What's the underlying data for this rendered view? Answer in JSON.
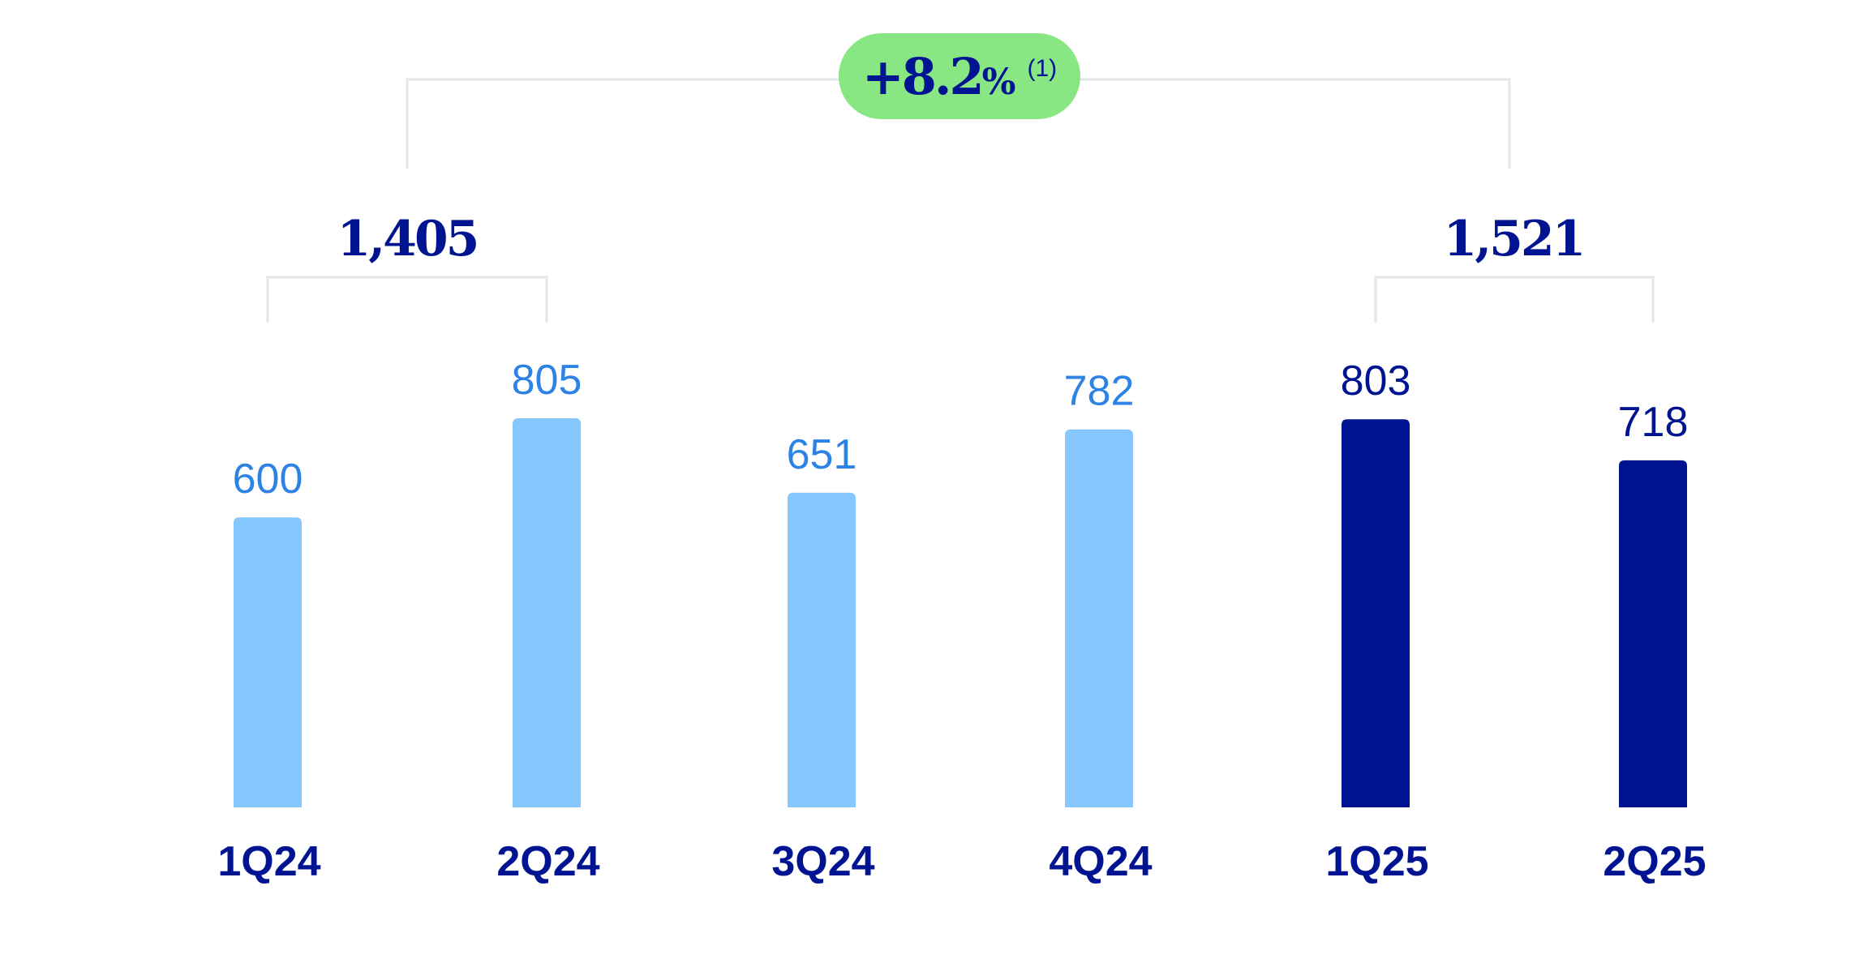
{
  "chart_data": {
    "type": "bar",
    "title": "",
    "xlabel": "",
    "ylabel": "",
    "ylim": [
      0,
      1000
    ],
    "grid": false,
    "categories": [
      "1Q24",
      "2Q24",
      "3Q24",
      "4Q24",
      "1Q25",
      "2Q25"
    ],
    "values": [
      600,
      805,
      651,
      782,
      803,
      718
    ],
    "value_labels": [
      "600",
      "805",
      "651",
      "782",
      "803",
      "718"
    ],
    "group_totals": [
      {
        "label": "1,405",
        "categories": [
          "1Q24",
          "2Q24"
        ]
      },
      {
        "label": "1,521",
        "categories": [
          "1Q25",
          "2Q25"
        ]
      }
    ],
    "growth_badge": {
      "sign_value": "+8.2",
      "unit": "%",
      "footnote": "(1)"
    }
  },
  "colors": {
    "bar_2024": "#87c7ff",
    "bar_2025": "#001391",
    "label_2024": "#2d83e4",
    "label_2025": "#001391",
    "category_text": "#001391",
    "badge_bg": "#88e783",
    "bracket": "#e3e6ea"
  }
}
